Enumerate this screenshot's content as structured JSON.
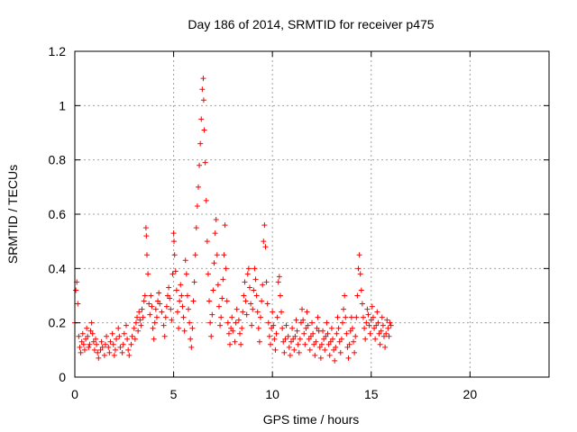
{
  "chart_data": {
    "type": "scatter",
    "title": "Day 186 of 2014, SRMTID for receiver p475",
    "xlabel": "GPS time / hours",
    "ylabel": "SRMTID / TECUs",
    "xlim": [
      0,
      24
    ],
    "ylim": [
      0,
      1.2
    ],
    "xticks": [
      0,
      5,
      10,
      15,
      20
    ],
    "xtick_labels": [
      "0",
      "5",
      "10",
      "15",
      "20"
    ],
    "yticks": [
      0,
      0.2,
      0.4,
      0.6,
      0.8,
      1.0,
      1.2
    ],
    "ytick_labels": [
      "0",
      "0.2",
      "0.4",
      "0.6",
      "0.8",
      "1",
      "1.2"
    ],
    "grid": true,
    "marker": "plus",
    "color": "#ff0000",
    "series": [
      {
        "name": "p475",
        "points": [
          [
            0.0,
            0.2
          ],
          [
            0.05,
            0.32
          ],
          [
            0.1,
            0.35
          ],
          [
            0.15,
            0.27
          ],
          [
            0.2,
            0.15
          ],
          [
            0.25,
            0.11
          ],
          [
            0.3,
            0.09
          ],
          [
            0.35,
            0.13
          ],
          [
            0.4,
            0.16
          ],
          [
            0.45,
            0.12
          ],
          [
            0.5,
            0.1
          ],
          [
            0.55,
            0.14
          ],
          [
            0.6,
            0.18
          ],
          [
            0.65,
            0.15
          ],
          [
            0.7,
            0.11
          ],
          [
            0.75,
            0.12
          ],
          [
            0.8,
            0.17
          ],
          [
            0.85,
            0.2
          ],
          [
            0.9,
            0.16
          ],
          [
            0.95,
            0.13
          ],
          [
            1.0,
            0.1
          ],
          [
            1.05,
            0.14
          ],
          [
            1.1,
            0.12
          ],
          [
            1.15,
            0.09
          ],
          [
            1.2,
            0.07
          ],
          [
            1.3,
            0.1
          ],
          [
            1.35,
            0.13
          ],
          [
            1.4,
            0.11
          ],
          [
            1.5,
            0.08
          ],
          [
            1.55,
            0.12
          ],
          [
            1.6,
            0.15
          ],
          [
            1.7,
            0.11
          ],
          [
            1.75,
            0.09
          ],
          [
            1.8,
            0.13
          ],
          [
            1.9,
            0.16
          ],
          [
            1.95,
            0.12
          ],
          [
            2.0,
            0.08
          ],
          [
            2.05,
            0.1
          ],
          [
            2.1,
            0.14
          ],
          [
            2.2,
            0.18
          ],
          [
            2.25,
            0.15
          ],
          [
            2.3,
            0.11
          ],
          [
            2.4,
            0.09
          ],
          [
            2.45,
            0.12
          ],
          [
            2.5,
            0.16
          ],
          [
            2.6,
            0.19
          ],
          [
            2.65,
            0.14
          ],
          [
            2.7,
            0.1
          ],
          [
            2.75,
            0.08
          ],
          [
            2.85,
            0.12
          ],
          [
            2.9,
            0.15
          ],
          [
            3.0,
            0.18
          ],
          [
            3.05,
            0.14
          ],
          [
            3.1,
            0.2
          ],
          [
            3.15,
            0.22
          ],
          [
            3.2,
            0.17
          ],
          [
            3.25,
            0.24
          ],
          [
            3.3,
            0.21
          ],
          [
            3.35,
            0.19
          ],
          [
            3.4,
            0.25
          ],
          [
            3.45,
            0.22
          ],
          [
            3.5,
            0.28
          ],
          [
            3.55,
            0.3
          ],
          [
            3.6,
            0.55
          ],
          [
            3.62,
            0.52
          ],
          [
            3.65,
            0.45
          ],
          [
            3.7,
            0.38
          ],
          [
            3.75,
            0.27
          ],
          [
            3.8,
            0.23
          ],
          [
            3.85,
            0.3
          ],
          [
            3.9,
            0.26
          ],
          [
            3.95,
            0.18
          ],
          [
            4.0,
            0.14
          ],
          [
            4.05,
            0.2
          ],
          [
            4.1,
            0.25
          ],
          [
            4.15,
            0.22
          ],
          [
            4.2,
            0.28
          ],
          [
            4.25,
            0.31
          ],
          [
            4.3,
            0.27
          ],
          [
            4.4,
            0.24
          ],
          [
            4.5,
            0.19
          ],
          [
            4.55,
            0.15
          ],
          [
            4.6,
            0.22
          ],
          [
            4.65,
            0.26
          ],
          [
            4.7,
            0.3
          ],
          [
            4.75,
            0.33
          ],
          [
            4.8,
            0.29
          ],
          [
            4.85,
            0.25
          ],
          [
            4.9,
            0.21
          ],
          [
            4.95,
            0.38
          ],
          [
            5.0,
            0.53
          ],
          [
            5.02,
            0.5
          ],
          [
            5.05,
            0.45
          ],
          [
            5.1,
            0.39
          ],
          [
            5.15,
            0.32
          ],
          [
            5.2,
            0.24
          ],
          [
            5.25,
            0.18
          ],
          [
            5.3,
            0.28
          ],
          [
            5.35,
            0.34
          ],
          [
            5.4,
            0.3
          ],
          [
            5.45,
            0.26
          ],
          [
            5.5,
            0.22
          ],
          [
            5.55,
            0.17
          ],
          [
            5.6,
            0.43
          ],
          [
            5.65,
            0.38
          ],
          [
            5.7,
            0.3
          ],
          [
            5.75,
            0.25
          ],
          [
            5.8,
            0.2
          ],
          [
            5.85,
            0.14
          ],
          [
            5.9,
            0.11
          ],
          [
            5.95,
            0.18
          ],
          [
            6.0,
            0.28
          ],
          [
            6.05,
            0.35
          ],
          [
            6.1,
            0.45
          ],
          [
            6.15,
            0.55
          ],
          [
            6.2,
            0.63
          ],
          [
            6.25,
            0.7
          ],
          [
            6.3,
            0.78
          ],
          [
            6.35,
            0.86
          ],
          [
            6.4,
            0.95
          ],
          [
            6.45,
            1.06
          ],
          [
            6.5,
            1.1
          ],
          [
            6.52,
            1.02
          ],
          [
            6.55,
            0.91
          ],
          [
            6.6,
            0.79
          ],
          [
            6.65,
            0.65
          ],
          [
            6.7,
            0.5
          ],
          [
            6.75,
            0.38
          ],
          [
            6.8,
            0.28
          ],
          [
            6.85,
            0.2
          ],
          [
            6.9,
            0.15
          ],
          [
            6.95,
            0.23
          ],
          [
            7.0,
            0.32
          ],
          [
            7.05,
            0.42
          ],
          [
            7.1,
            0.53
          ],
          [
            7.15,
            0.58
          ],
          [
            7.2,
            0.45
          ],
          [
            7.25,
            0.34
          ],
          [
            7.3,
            0.26
          ],
          [
            7.35,
            0.19
          ],
          [
            7.4,
            0.22
          ],
          [
            7.45,
            0.29
          ],
          [
            7.5,
            0.36
          ],
          [
            7.55,
            0.45
          ],
          [
            7.6,
            0.56
          ],
          [
            7.65,
            0.4
          ],
          [
            7.7,
            0.28
          ],
          [
            7.75,
            0.2
          ],
          [
            7.8,
            0.16
          ],
          [
            7.85,
            0.12
          ],
          [
            7.9,
            0.18
          ],
          [
            7.95,
            0.22
          ],
          [
            8.0,
            0.17
          ],
          [
            8.1,
            0.13
          ],
          [
            8.15,
            0.2
          ],
          [
            8.2,
            0.25
          ],
          [
            8.3,
            0.21
          ],
          [
            8.35,
            0.16
          ],
          [
            8.4,
            0.12
          ],
          [
            8.45,
            0.18
          ],
          [
            8.5,
            0.24
          ],
          [
            8.55,
            0.3
          ],
          [
            8.6,
            0.35
          ],
          [
            8.65,
            0.28
          ],
          [
            8.7,
            0.23
          ],
          [
            8.75,
            0.38
          ],
          [
            8.8,
            0.4
          ],
          [
            8.85,
            0.33
          ],
          [
            8.9,
            0.27
          ],
          [
            8.95,
            0.19
          ],
          [
            9.0,
            0.25
          ],
          [
            9.05,
            0.32
          ],
          [
            9.1,
            0.4
          ],
          [
            9.15,
            0.36
          ],
          [
            9.2,
            0.3
          ],
          [
            9.25,
            0.24
          ],
          [
            9.3,
            0.18
          ],
          [
            9.35,
            0.13
          ],
          [
            9.4,
            0.22
          ],
          [
            9.45,
            0.28
          ],
          [
            9.5,
            0.34
          ],
          [
            9.55,
            0.5
          ],
          [
            9.6,
            0.56
          ],
          [
            9.65,
            0.48
          ],
          [
            9.7,
            0.35
          ],
          [
            9.75,
            0.27
          ],
          [
            9.8,
            0.2
          ],
          [
            9.85,
            0.15
          ],
          [
            9.9,
            0.12
          ],
          [
            9.95,
            0.18
          ],
          [
            10.0,
            0.24
          ],
          [
            10.05,
            0.19
          ],
          [
            10.1,
            0.14
          ],
          [
            10.15,
            0.1
          ],
          [
            10.2,
            0.16
          ],
          [
            10.25,
            0.22
          ],
          [
            10.3,
            0.35
          ],
          [
            10.35,
            0.37
          ],
          [
            10.4,
            0.3
          ],
          [
            10.45,
            0.24
          ],
          [
            10.5,
            0.18
          ],
          [
            10.55,
            0.13
          ],
          [
            10.6,
            0.09
          ],
          [
            10.65,
            0.14
          ],
          [
            10.7,
            0.19
          ],
          [
            10.8,
            0.15
          ],
          [
            10.85,
            0.11
          ],
          [
            10.9,
            0.08
          ],
          [
            10.95,
            0.13
          ],
          [
            11.0,
            0.18
          ],
          [
            11.05,
            0.14
          ],
          [
            11.1,
            0.1
          ],
          [
            11.15,
            0.15
          ],
          [
            11.2,
            0.21
          ],
          [
            11.25,
            0.17
          ],
          [
            11.3,
            0.12
          ],
          [
            11.35,
            0.09
          ],
          [
            11.4,
            0.14
          ],
          [
            11.45,
            0.2
          ],
          [
            11.5,
            0.25
          ],
          [
            11.55,
            0.21
          ],
          [
            11.6,
            0.16
          ],
          [
            11.65,
            0.12
          ],
          [
            11.7,
            0.18
          ],
          [
            11.75,
            0.24
          ],
          [
            11.8,
            0.19
          ],
          [
            11.85,
            0.14
          ],
          [
            11.9,
            0.1
          ],
          [
            11.95,
            0.15
          ],
          [
            12.0,
            0.2
          ],
          [
            12.05,
            0.16
          ],
          [
            12.1,
            0.12
          ],
          [
            12.15,
            0.08
          ],
          [
            12.2,
            0.13
          ],
          [
            12.25,
            0.18
          ],
          [
            12.3,
            0.22
          ],
          [
            12.35,
            0.17
          ],
          [
            12.4,
            0.11
          ],
          [
            12.45,
            0.07
          ],
          [
            12.5,
            0.12
          ],
          [
            12.55,
            0.17
          ],
          [
            12.6,
            0.14
          ],
          [
            12.65,
            0.1
          ],
          [
            12.7,
            0.15
          ],
          [
            12.75,
            0.2
          ],
          [
            12.8,
            0.16
          ],
          [
            12.85,
            0.12
          ],
          [
            12.9,
            0.08
          ],
          [
            12.95,
            0.13
          ],
          [
            13.0,
            0.18
          ],
          [
            13.05,
            0.14
          ],
          [
            13.1,
            0.1
          ],
          [
            13.15,
            0.06
          ],
          [
            13.2,
            0.11
          ],
          [
            13.25,
            0.16
          ],
          [
            13.3,
            0.22
          ],
          [
            13.35,
            0.18
          ],
          [
            13.4,
            0.13
          ],
          [
            13.45,
            0.09
          ],
          [
            13.5,
            0.14
          ],
          [
            13.55,
            0.2
          ],
          [
            13.6,
            0.25
          ],
          [
            13.65,
            0.3
          ],
          [
            13.7,
            0.22
          ],
          [
            13.75,
            0.16
          ],
          [
            13.8,
            0.11
          ],
          [
            13.85,
            0.07
          ],
          [
            13.9,
            0.12
          ],
          [
            13.95,
            0.17
          ],
          [
            14.0,
            0.22
          ],
          [
            14.05,
            0.18
          ],
          [
            14.1,
            0.13
          ],
          [
            14.15,
            0.09
          ],
          [
            14.2,
            0.15
          ],
          [
            14.25,
            0.22
          ],
          [
            14.3,
            0.3
          ],
          [
            14.35,
            0.4
          ],
          [
            14.4,
            0.45
          ],
          [
            14.45,
            0.38
          ],
          [
            14.5,
            0.32
          ],
          [
            14.55,
            0.27
          ],
          [
            14.6,
            0.22
          ],
          [
            14.65,
            0.18
          ],
          [
            14.7,
            0.14
          ],
          [
            14.75,
            0.2
          ],
          [
            14.8,
            0.25
          ],
          [
            14.85,
            0.23
          ],
          [
            14.9,
            0.19
          ],
          [
            14.95,
            0.16
          ],
          [
            15.0,
            0.21
          ],
          [
            15.05,
            0.26
          ],
          [
            15.1,
            0.22
          ],
          [
            15.15,
            0.18
          ],
          [
            15.2,
            0.14
          ],
          [
            15.25,
            0.19
          ],
          [
            15.3,
            0.24
          ],
          [
            15.35,
            0.2
          ],
          [
            15.4,
            0.16
          ],
          [
            15.45,
            0.12
          ],
          [
            15.5,
            0.17
          ],
          [
            15.55,
            0.22
          ],
          [
            15.6,
            0.19
          ],
          [
            15.65,
            0.15
          ],
          [
            15.7,
            0.11
          ],
          [
            15.75,
            0.16
          ],
          [
            15.8,
            0.21
          ],
          [
            15.85,
            0.18
          ],
          [
            15.9,
            0.15
          ],
          [
            15.95,
            0.2
          ],
          [
            16.0,
            0.19
          ]
        ]
      }
    ]
  }
}
